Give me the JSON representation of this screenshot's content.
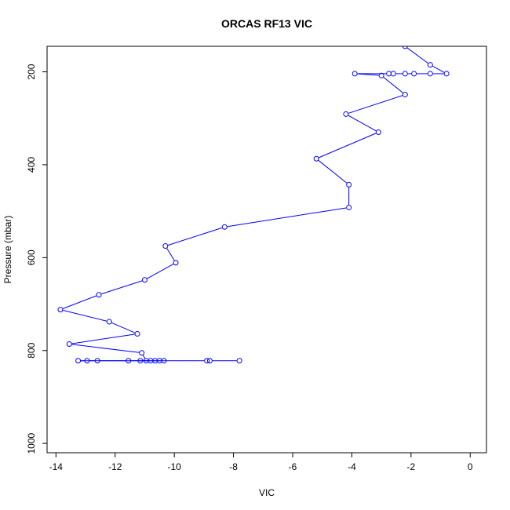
{
  "chart_data": {
    "type": "line",
    "title": "ORCAS RF13 VIC",
    "xlabel": "VIC",
    "ylabel": "Pressure (mbar)",
    "xlim": [
      -14.3,
      0.55
    ],
    "ylim": [
      1020,
      145
    ],
    "y_axis_inverted": true,
    "xticks": [
      -14,
      -12,
      -10,
      -8,
      -6,
      -4,
      -2,
      0
    ],
    "yticks": [
      200,
      400,
      600,
      800,
      1000
    ],
    "grid": false,
    "legend": "none",
    "series": [
      {
        "color": "#0000ff",
        "marker": "open-circle",
        "points": [
          [
            -2.2,
            145
          ],
          [
            -1.35,
            185
          ],
          [
            -0.8,
            204
          ],
          [
            -1.35,
            204
          ],
          [
            -1.9,
            204
          ],
          [
            -2.2,
            204
          ],
          [
            -2.6,
            204
          ],
          [
            -2.75,
            204
          ],
          [
            -3.9,
            204
          ],
          [
            -3.0,
            208
          ],
          [
            -2.2,
            249
          ],
          [
            -4.2,
            291
          ],
          [
            -3.1,
            330
          ],
          [
            -5.2,
            387
          ],
          [
            -4.1,
            443
          ],
          [
            -4.1,
            492
          ],
          [
            -8.3,
            534
          ],
          [
            -10.3,
            575
          ],
          [
            -9.95,
            611
          ],
          [
            -11.0,
            648
          ],
          [
            -12.55,
            680
          ],
          [
            -13.85,
            712
          ],
          [
            -12.2,
            738
          ],
          [
            -11.25,
            764
          ],
          [
            -13.55,
            786
          ],
          [
            -11.1,
            805
          ],
          [
            -10.95,
            822
          ],
          [
            -11.15,
            822
          ],
          [
            -10.65,
            822
          ],
          [
            -10.5,
            822
          ],
          [
            -10.35,
            822
          ],
          [
            -10.8,
            822
          ],
          [
            -11.55,
            822
          ],
          [
            -12.6,
            822
          ],
          [
            -12.95,
            822
          ],
          [
            -13.25,
            822
          ],
          [
            -8.9,
            822
          ],
          [
            -8.8,
            822
          ],
          [
            -7.8,
            822
          ]
        ]
      }
    ]
  }
}
